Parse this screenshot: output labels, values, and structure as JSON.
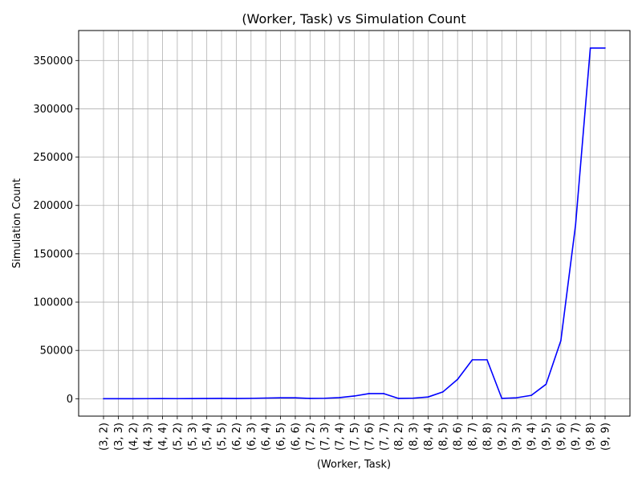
{
  "chart_data": {
    "type": "line",
    "title": "(Worker, Task) vs Simulation Count",
    "xlabel": "(Worker, Task)",
    "ylabel": "Simulation Count",
    "categories": [
      "(3, 2)",
      "(3, 3)",
      "(4, 2)",
      "(4, 3)",
      "(4, 4)",
      "(5, 2)",
      "(5, 3)",
      "(5, 4)",
      "(5, 5)",
      "(6, 2)",
      "(6, 3)",
      "(6, 4)",
      "(6, 5)",
      "(6, 6)",
      "(7, 2)",
      "(7, 3)",
      "(7, 4)",
      "(7, 5)",
      "(7, 6)",
      "(7, 7)",
      "(8, 2)",
      "(8, 3)",
      "(8, 4)",
      "(8, 5)",
      "(8, 6)",
      "(8, 7)",
      "(8, 8)",
      "(9, 2)",
      "(9, 3)",
      "(9, 4)",
      "(9, 5)",
      "(9, 6)",
      "(9, 7)",
      "(9, 8)",
      "(9, 9)"
    ],
    "series": [
      {
        "color": "#0000ff",
        "values": [
          20,
          40,
          40,
          80,
          100,
          80,
          150,
          250,
          300,
          200,
          400,
          700,
          1000,
          1000,
          300,
          500,
          1200,
          2800,
          5300,
          5300,
          300,
          600,
          1800,
          7000,
          20000,
          40300,
          40300,
          300,
          1000,
          3500,
          15000,
          60000,
          180000,
          362880,
          362880
        ]
      }
    ],
    "ylim": [
      -18000,
      381000
    ],
    "yticks": [
      0,
      50000,
      100000,
      150000,
      200000,
      250000,
      300000,
      350000
    ],
    "ytick_labels": [
      "0",
      "50000",
      "100000",
      "150000",
      "200000",
      "250000",
      "300000",
      "350000"
    ],
    "grid": true
  }
}
